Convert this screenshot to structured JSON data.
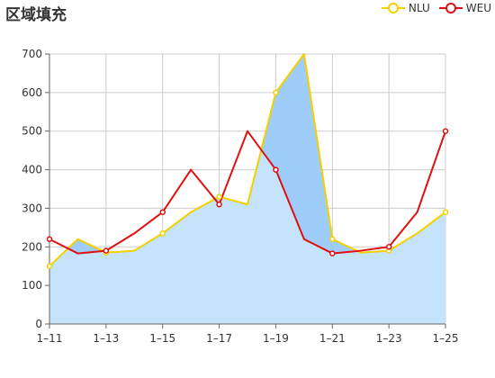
{
  "chart_data": {
    "type": "line",
    "title": "区域填充",
    "categories": [
      "1-11",
      "1-12",
      "1-13",
      "1-14",
      "1-15",
      "1-16",
      "1-17",
      "1-18",
      "1-19",
      "1-20",
      "1-21",
      "1-22",
      "1-23",
      "1-24",
      "1-25"
    ],
    "x_tick_labels": [
      "1–11",
      "1–13",
      "1–15",
      "1–17",
      "1–19",
      "1–21",
      "1–23",
      "1–25"
    ],
    "y_ticks": [
      0,
      100,
      200,
      300,
      400,
      500,
      600,
      700
    ],
    "ylim": [
      0,
      700
    ],
    "grid": true,
    "legend_position": "top-right",
    "series": [
      {
        "name": "NLU",
        "color": "#f5d000",
        "area": true,
        "values": [
          150,
          220,
          185,
          190,
          235,
          290,
          330,
          310,
          600,
          700,
          220,
          185,
          190,
          235,
          290
        ]
      },
      {
        "name": "WEU",
        "color": "#e01010",
        "area": false,
        "values": [
          220,
          183,
          190,
          235,
          290,
          400,
          310,
          500,
          400,
          220,
          183,
          190,
          200,
          290,
          500
        ]
      }
    ],
    "colors": {
      "area_fill": "#c5e3fb",
      "area_overlap": "#9ecdf9",
      "grid": "#cccccc",
      "axis": "#666666"
    }
  }
}
